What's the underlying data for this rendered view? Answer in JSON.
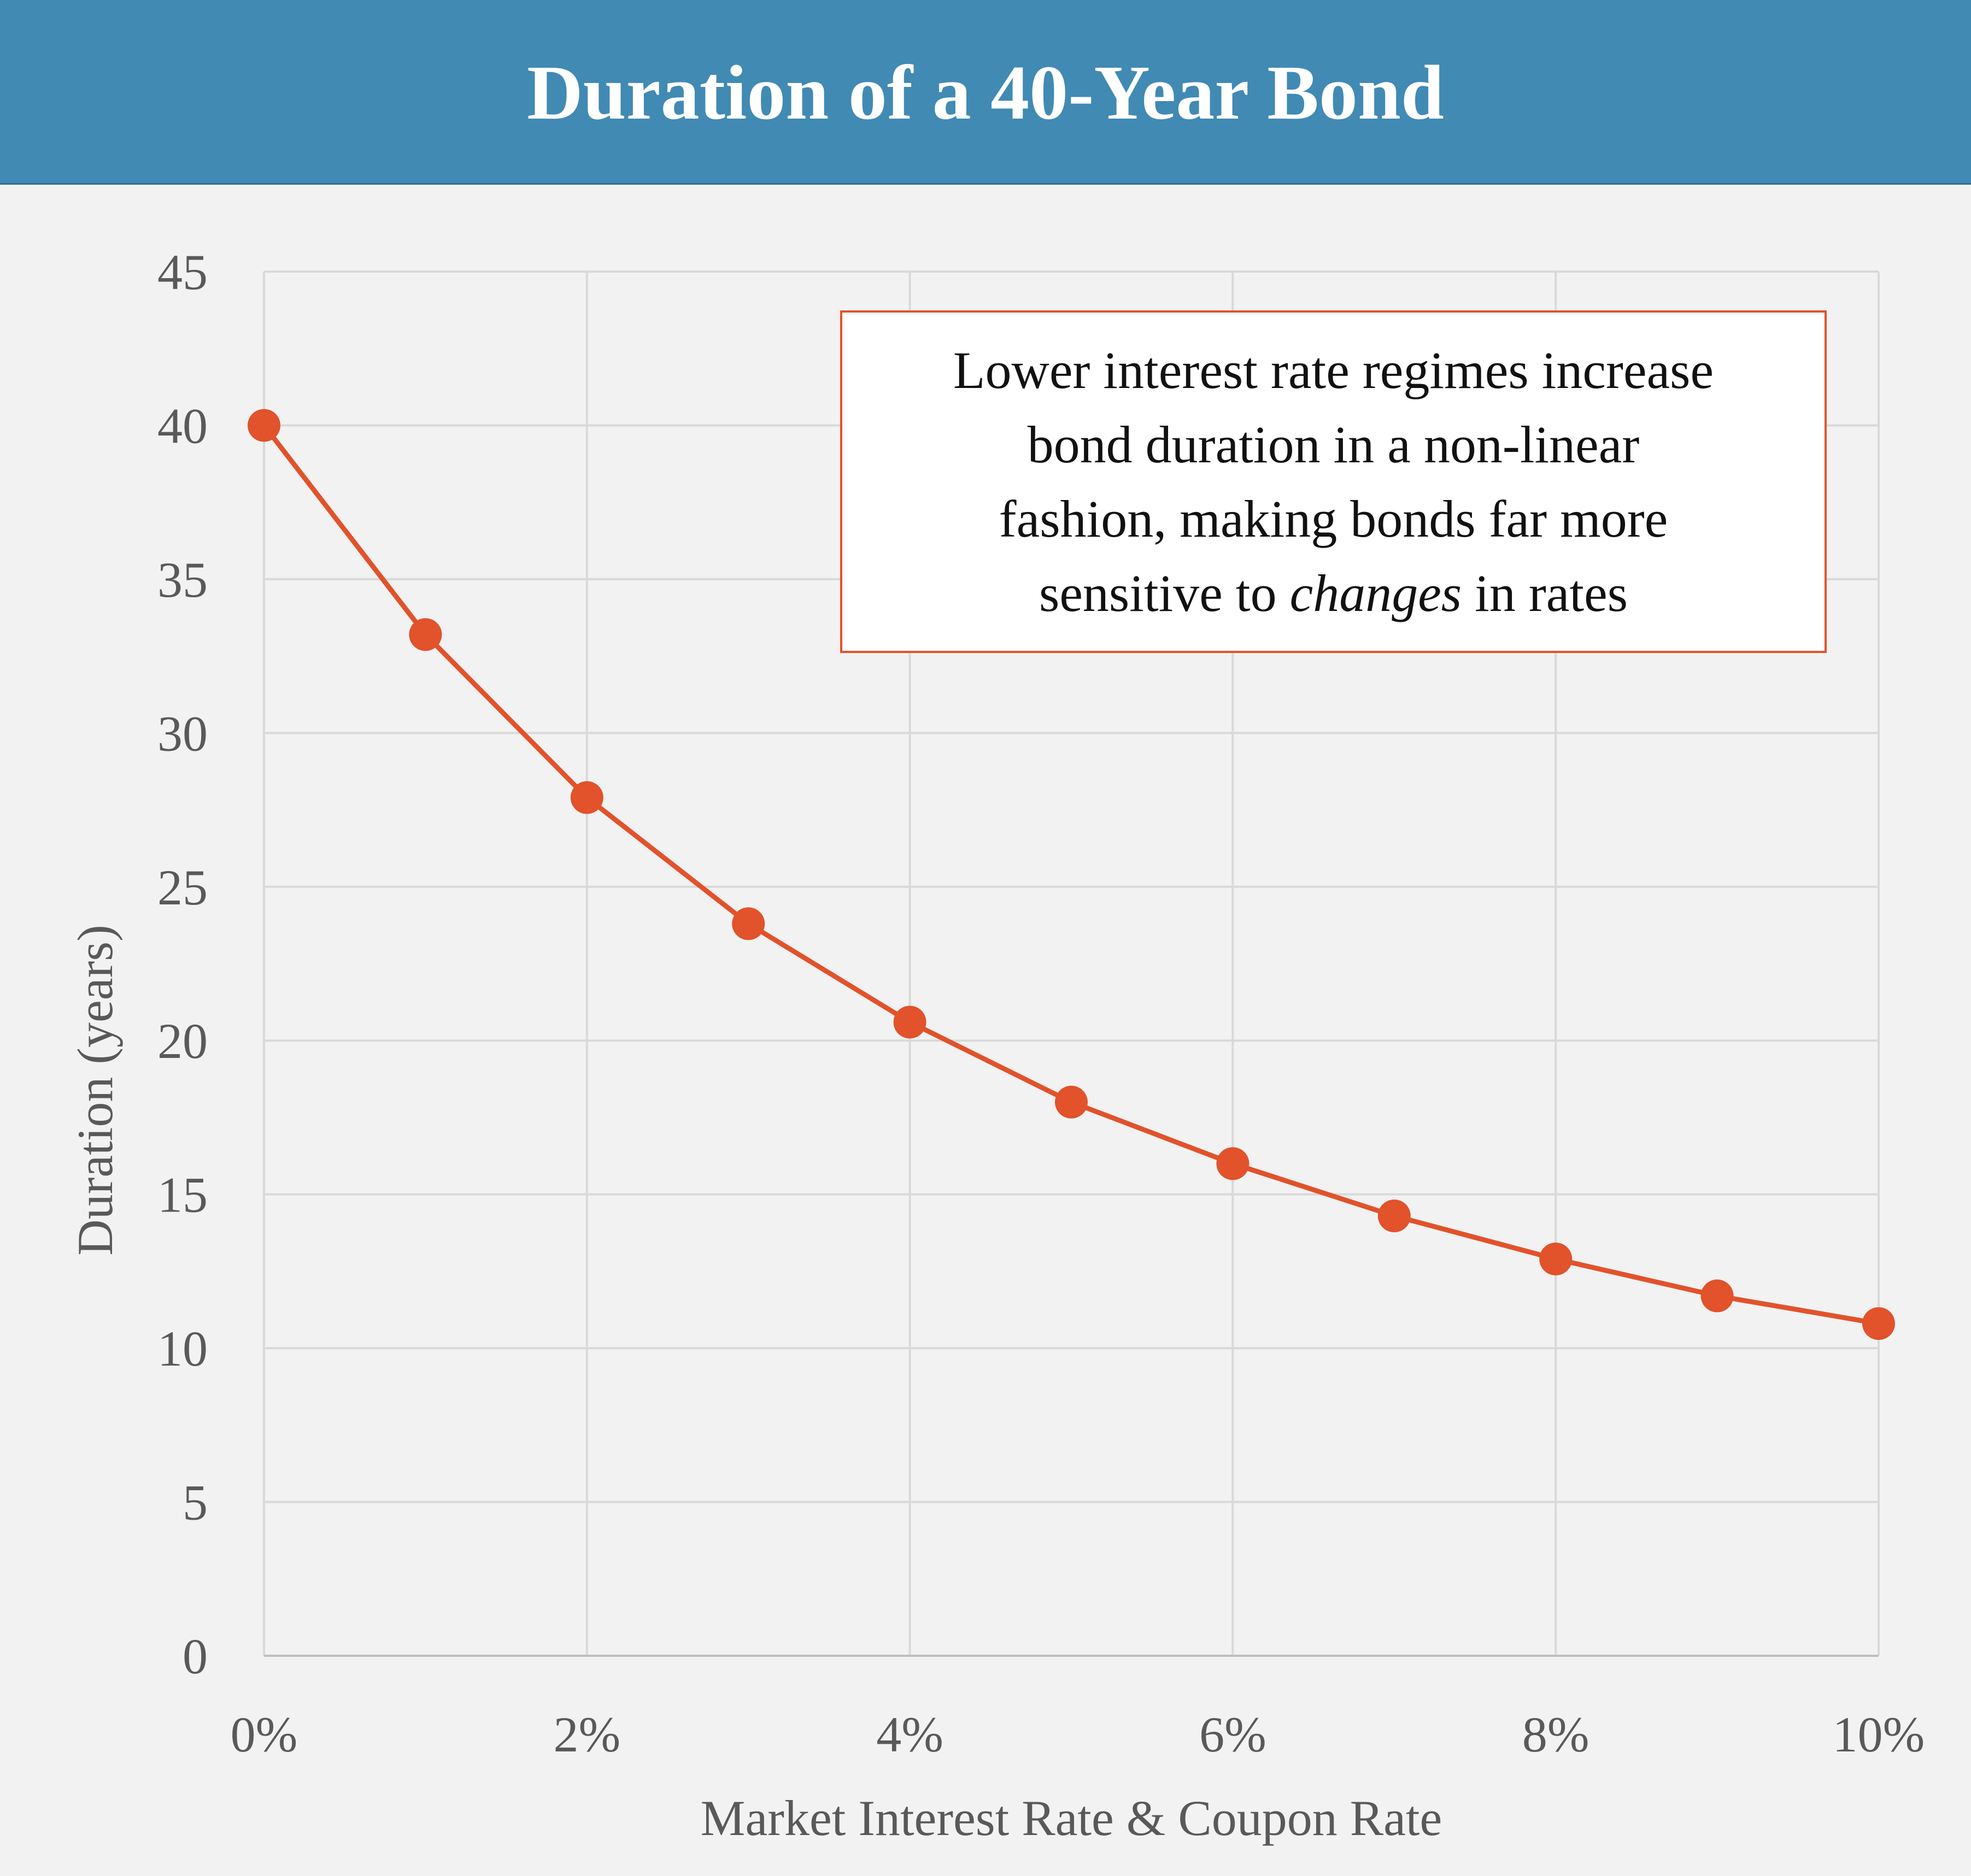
{
  "colors": {
    "header_bg": "#418ab3",
    "background": "#f2f2f2",
    "series": "#e2522b",
    "grid": "#d9d9d9",
    "text": "#595959"
  },
  "chart_data": {
    "type": "line",
    "title": "Duration of a 40-Year Bond",
    "xlabel": "Market Interest Rate & Coupon Rate",
    "ylabel": "Duration (years)",
    "x": [
      0,
      1,
      2,
      3,
      4,
      5,
      6,
      7,
      8,
      9,
      10
    ],
    "x_unit": "%",
    "xlim": [
      0,
      10
    ],
    "ylim": [
      0,
      45
    ],
    "x_ticks": [
      0,
      2,
      4,
      6,
      8,
      10
    ],
    "x_tick_labels": [
      "0%",
      "2%",
      "4%",
      "6%",
      "8%",
      "10%"
    ],
    "y_ticks": [
      0,
      5,
      10,
      15,
      20,
      25,
      30,
      35,
      40,
      45
    ],
    "y_tick_labels": [
      "0",
      "5",
      "10",
      "15",
      "20",
      "25",
      "30",
      "35",
      "40",
      "45"
    ],
    "grid": true,
    "legend": "none",
    "series": [
      {
        "values": [
          40.0,
          33.2,
          27.9,
          23.8,
          20.6,
          18.0,
          16.0,
          14.3,
          12.9,
          11.7,
          10.8
        ],
        "color": "#e2522b",
        "marker": "circle"
      }
    ],
    "annotation": {
      "lines": [
        "Lower interest rate regimes increase",
        "bond duration in a non-linear",
        "fashion, making bonds far more"
      ],
      "last_line_prefix": "sensitive to ",
      "last_line_emphasis": "changes",
      "last_line_suffix": " in rates"
    }
  }
}
